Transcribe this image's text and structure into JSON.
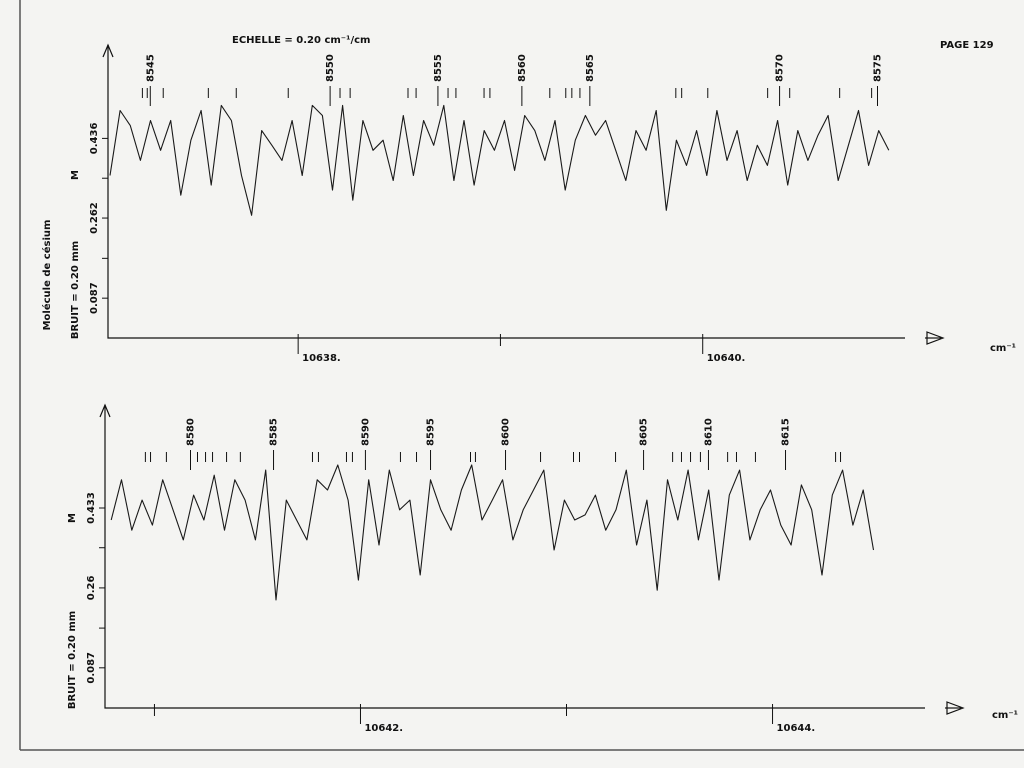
{
  "header": {
    "title": "ECHELLE = 0.20 cm⁻¹/cm",
    "page": "PAGE 129"
  },
  "chart_data": [
    {
      "type": "line",
      "title": "Molécule de césium",
      "ylabel": "BRUIT = 0.20 mm",
      "y_marker": "M",
      "xlabel": "cm⁻¹",
      "xlim": [
        10637.06,
        10641.0
      ],
      "xticks": [
        {
          "value": 10638,
          "label": "10638."
        },
        {
          "value": 10640,
          "label": "10640."
        }
      ],
      "xminorticks": [
        10639
      ],
      "ylim": [
        0,
        0.64
      ],
      "yticks": [
        0.087,
        0.262,
        0.436
      ],
      "yminorticks": [
        0.174,
        0.349
      ],
      "line_labels": [
        {
          "x": 10637.269,
          "text": "8545"
        },
        {
          "x": 10638.158,
          "text": "8550"
        },
        {
          "x": 10638.691,
          "text": "8555"
        },
        {
          "x": 10639.106,
          "text": "8560"
        },
        {
          "x": 10639.442,
          "text": "8565"
        },
        {
          "x": 10640.38,
          "text": "8570"
        },
        {
          "x": 10640.864,
          "text": "8575"
        }
      ],
      "line_marks": [
        10637.23,
        10637.254,
        10637.333,
        10637.556,
        10637.694,
        10637.951,
        10638.207,
        10638.257,
        10638.543,
        10638.583,
        10638.741,
        10638.78,
        10638.919,
        10638.948,
        10639.244,
        10639.323,
        10639.353,
        10639.393,
        10639.867,
        10639.896,
        10640.025,
        10640.321,
        10640.43,
        10640.677,
        10640.835
      ],
      "x": [
        10637.07,
        10637.12,
        10637.17,
        10637.22,
        10637.27,
        10637.32,
        10637.37,
        10637.42,
        10637.47,
        10637.52,
        10637.57,
        10637.62,
        10637.67,
        10637.72,
        10637.77,
        10637.82,
        10637.87,
        10637.92,
        10637.97,
        10638.02,
        10638.07,
        10638.12,
        10638.17,
        10638.22,
        10638.27,
        10638.32,
        10638.37,
        10638.42,
        10638.47,
        10638.52,
        10638.57,
        10638.62,
        10638.67,
        10638.72,
        10638.77,
        10638.82,
        10638.87,
        10638.92,
        10638.97,
        10639.02,
        10639.07,
        10639.12,
        10639.17,
        10639.22,
        10639.27,
        10639.32,
        10639.37,
        10639.42,
        10639.47,
        10639.52,
        10639.57,
        10639.62,
        10639.67,
        10639.72,
        10639.77,
        10639.82,
        10639.87,
        10639.92,
        10639.97,
        10640.02,
        10640.07,
        10640.12,
        10640.17,
        10640.22,
        10640.27,
        10640.32,
        10640.37,
        10640.42,
        10640.47,
        10640.52,
        10640.57,
        10640.62,
        10640.67,
        10640.72,
        10640.77,
        10640.82,
        10640.87,
        10640.92
      ],
      "series": [
        {
          "color": "#1a1a1a",
          "values": [
            0.355,
            0.497,
            0.464,
            0.388,
            0.475,
            0.41,
            0.475,
            0.312,
            0.432,
            0.497,
            0.334,
            0.508,
            0.475,
            0.355,
            0.268,
            0.453,
            0.421,
            0.388,
            0.475,
            0.355,
            0.508,
            0.486,
            0.323,
            0.508,
            0.301,
            0.475,
            0.41,
            0.432,
            0.344,
            0.486,
            0.355,
            0.475,
            0.421,
            0.508,
            0.344,
            0.475,
            0.334,
            0.453,
            0.41,
            0.475,
            0.366,
            0.486,
            0.453,
            0.388,
            0.475,
            0.323,
            0.432,
            0.486,
            0.443,
            0.475,
            0.41,
            0.344,
            0.453,
            0.41,
            0.497,
            0.279,
            0.432,
            0.377,
            0.453,
            0.355,
            0.497,
            0.388,
            0.453,
            0.344,
            0.421,
            0.377,
            0.475,
            0.334,
            0.453,
            0.388,
            0.443,
            0.486,
            0.344,
            0.421,
            0.497,
            0.377,
            0.453,
            0.41
          ]
        }
      ]
    },
    {
      "type": "line",
      "ylabel": "BRUIT = 0.20 mm",
      "y_marker": "M",
      "xlabel": "cm⁻¹",
      "xlim": [
        10640.76,
        10644.74
      ],
      "xticks": [
        {
          "value": 10642,
          "label": "10642."
        },
        {
          "value": 10644,
          "label": "10644."
        }
      ],
      "xminorticks": [
        10641,
        10643
      ],
      "ylim": [
        0,
        0.656
      ],
      "yticks": [
        0.087,
        0.26,
        0.433
      ],
      "yminorticks": [
        0.173,
        0.347
      ],
      "line_labels": [
        {
          "x": 10641.175,
          "text": "8580"
        },
        {
          "x": 10641.578,
          "text": "8585"
        },
        {
          "x": 10642.024,
          "text": "8590"
        },
        {
          "x": 10642.34,
          "text": "8595"
        },
        {
          "x": 10642.704,
          "text": "8600"
        },
        {
          "x": 10643.374,
          "text": "8605"
        },
        {
          "x": 10643.689,
          "text": "8610"
        },
        {
          "x": 10644.063,
          "text": "8615"
        }
      ],
      "line_marks": [
        10640.956,
        10640.981,
        10641.058,
        10641.209,
        10641.248,
        10641.282,
        10641.35,
        10641.417,
        10641.767,
        10641.796,
        10641.932,
        10641.961,
        10642.194,
        10642.272,
        10642.534,
        10642.558,
        10642.874,
        10643.034,
        10643.063,
        10643.238,
        10643.515,
        10643.558,
        10643.602,
        10643.65,
        10643.782,
        10643.825,
        10643.917,
        10644.306,
        10644.33
      ],
      "x": [
        10640.79,
        10640.84,
        10640.89,
        10640.94,
        10640.99,
        10641.04,
        10641.09,
        10641.14,
        10641.19,
        10641.24,
        10641.29,
        10641.34,
        10641.39,
        10641.44,
        10641.49,
        10641.54,
        10641.59,
        10641.64,
        10641.69,
        10641.74,
        10641.79,
        10641.84,
        10641.89,
        10641.94,
        10641.99,
        10642.04,
        10642.09,
        10642.14,
        10642.19,
        10642.24,
        10642.29,
        10642.34,
        10642.39,
        10642.44,
        10642.49,
        10642.54,
        10642.59,
        10642.64,
        10642.69,
        10642.74,
        10642.79,
        10642.84,
        10642.89,
        10642.94,
        10642.99,
        10643.04,
        10643.09,
        10643.14,
        10643.19,
        10643.24,
        10643.29,
        10643.34,
        10643.39,
        10643.44,
        10643.49,
        10643.54,
        10643.59,
        10643.64,
        10643.69,
        10643.74,
        10643.79,
        10643.84,
        10643.89,
        10643.94,
        10643.99,
        10644.04,
        10644.09,
        10644.14,
        10644.19,
        10644.24,
        10644.29,
        10644.34,
        10644.39,
        10644.44,
        10644.49
      ],
      "series": [
        {
          "color": "#1a1a1a",
          "values": [
            0.407,
            0.494,
            0.385,
            0.45,
            0.396,
            0.494,
            0.429,
            0.364,
            0.461,
            0.407,
            0.504,
            0.385,
            0.494,
            0.45,
            0.364,
            0.515,
            0.234,
            0.45,
            0.407,
            0.364,
            0.494,
            0.472,
            0.526,
            0.45,
            0.277,
            0.494,
            0.353,
            0.515,
            0.429,
            0.45,
            0.288,
            0.494,
            0.429,
            0.385,
            0.472,
            0.526,
            0.407,
            0.45,
            0.494,
            0.364,
            0.429,
            0.472,
            0.515,
            0.342,
            0.45,
            0.407,
            0.418,
            0.461,
            0.385,
            0.429,
            0.515,
            0.353,
            0.45,
            0.255,
            0.494,
            0.407,
            0.515,
            0.364,
            0.472,
            0.277,
            0.461,
            0.515,
            0.364,
            0.429,
            0.472,
            0.396,
            0.353,
            0.483,
            0.429,
            0.288,
            0.461,
            0.515,
            0.396,
            0.472,
            0.342
          ]
        }
      ]
    }
  ]
}
